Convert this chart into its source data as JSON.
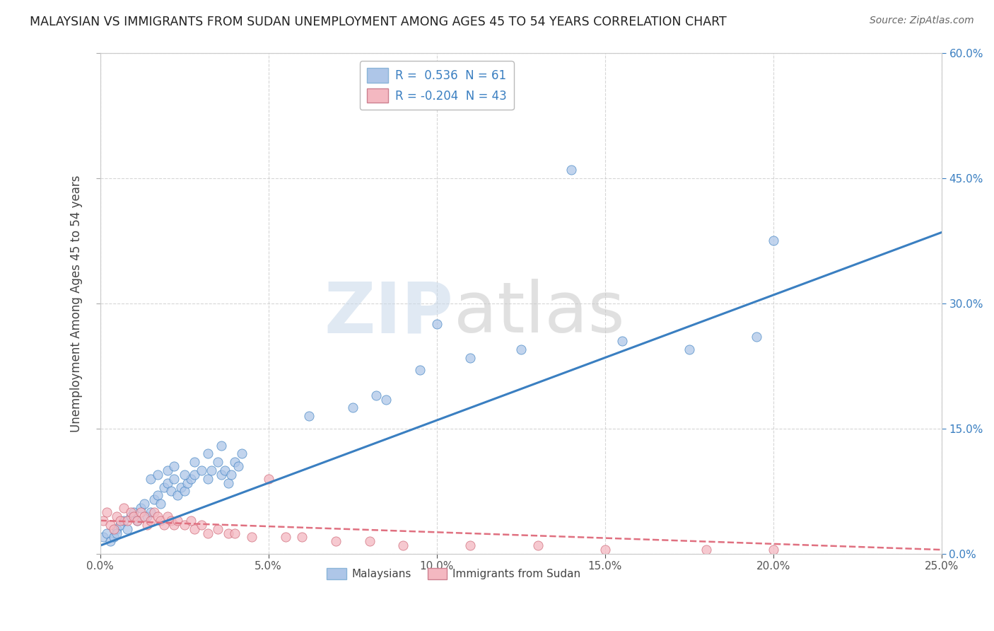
{
  "title": "MALAYSIAN VS IMMIGRANTS FROM SUDAN UNEMPLOYMENT AMONG AGES 45 TO 54 YEARS CORRELATION CHART",
  "source": "Source: ZipAtlas.com",
  "ylabel": "Unemployment Among Ages 45 to 54 years",
  "xlim": [
    0.0,
    0.25
  ],
  "ylim": [
    0.0,
    0.6
  ],
  "xticks": [
    0.0,
    0.05,
    0.1,
    0.15,
    0.2,
    0.25
  ],
  "yticks": [
    0.0,
    0.15,
    0.3,
    0.45,
    0.6
  ],
  "xtick_labels": [
    "0.0%",
    "5.0%",
    "10.0%",
    "15.0%",
    "20.0%",
    "25.0%"
  ],
  "ytick_labels": [
    "0.0%",
    "15.0%",
    "30.0%",
    "45.0%",
    "60.0%"
  ],
  "r_malaysian": 0.536,
  "n_malaysian": 61,
  "r_sudan": -0.204,
  "n_sudan": 43,
  "malaysian_color": "#aec6e8",
  "sudan_color": "#f4b8c1",
  "malaysian_line_color": "#3a7fc1",
  "sudan_line_color": "#e07080",
  "background_color": "#ffffff",
  "grid_color": "#cccccc",
  "malaysian_x": [
    0.001,
    0.002,
    0.003,
    0.004,
    0.005,
    0.005,
    0.006,
    0.007,
    0.008,
    0.009,
    0.01,
    0.011,
    0.012,
    0.013,
    0.014,
    0.015,
    0.016,
    0.017,
    0.018,
    0.019,
    0.02,
    0.021,
    0.022,
    0.023,
    0.024,
    0.025,
    0.026,
    0.027,
    0.028,
    0.03,
    0.032,
    0.033,
    0.035,
    0.036,
    0.037,
    0.038,
    0.039,
    0.04,
    0.041,
    0.042,
    0.015,
    0.017,
    0.02,
    0.022,
    0.025,
    0.028,
    0.032,
    0.036,
    0.082,
    0.095,
    0.11,
    0.125,
    0.14,
    0.155,
    0.175,
    0.195,
    0.062,
    0.075,
    0.085,
    0.1,
    0.2
  ],
  "malaysian_y": [
    0.02,
    0.025,
    0.015,
    0.02,
    0.03,
    0.025,
    0.035,
    0.04,
    0.03,
    0.045,
    0.05,
    0.04,
    0.055,
    0.06,
    0.045,
    0.05,
    0.065,
    0.07,
    0.06,
    0.08,
    0.085,
    0.075,
    0.09,
    0.07,
    0.08,
    0.075,
    0.085,
    0.09,
    0.095,
    0.1,
    0.09,
    0.1,
    0.11,
    0.095,
    0.1,
    0.085,
    0.095,
    0.11,
    0.105,
    0.12,
    0.09,
    0.095,
    0.1,
    0.105,
    0.095,
    0.11,
    0.12,
    0.13,
    0.19,
    0.22,
    0.235,
    0.245,
    0.46,
    0.255,
    0.245,
    0.26,
    0.165,
    0.175,
    0.185,
    0.275,
    0.375
  ],
  "sudan_x": [
    0.001,
    0.002,
    0.003,
    0.004,
    0.005,
    0.006,
    0.007,
    0.008,
    0.009,
    0.01,
    0.011,
    0.012,
    0.013,
    0.014,
    0.015,
    0.016,
    0.017,
    0.018,
    0.019,
    0.02,
    0.021,
    0.022,
    0.023,
    0.025,
    0.027,
    0.028,
    0.03,
    0.032,
    0.035,
    0.038,
    0.04,
    0.045,
    0.05,
    0.055,
    0.06,
    0.07,
    0.08,
    0.09,
    0.11,
    0.13,
    0.15,
    0.18,
    0.2
  ],
  "sudan_y": [
    0.04,
    0.05,
    0.035,
    0.03,
    0.045,
    0.04,
    0.055,
    0.04,
    0.05,
    0.045,
    0.04,
    0.05,
    0.045,
    0.035,
    0.04,
    0.05,
    0.045,
    0.04,
    0.035,
    0.045,
    0.04,
    0.035,
    0.04,
    0.035,
    0.04,
    0.03,
    0.035,
    0.025,
    0.03,
    0.025,
    0.025,
    0.02,
    0.09,
    0.02,
    0.02,
    0.015,
    0.015,
    0.01,
    0.01,
    0.01,
    0.005,
    0.005,
    0.005
  ],
  "malaysian_line_x": [
    0.0,
    0.25
  ],
  "malaysian_line_y": [
    0.01,
    0.385
  ],
  "sudan_line_x": [
    0.0,
    0.25
  ],
  "sudan_line_y": [
    0.04,
    0.005
  ]
}
